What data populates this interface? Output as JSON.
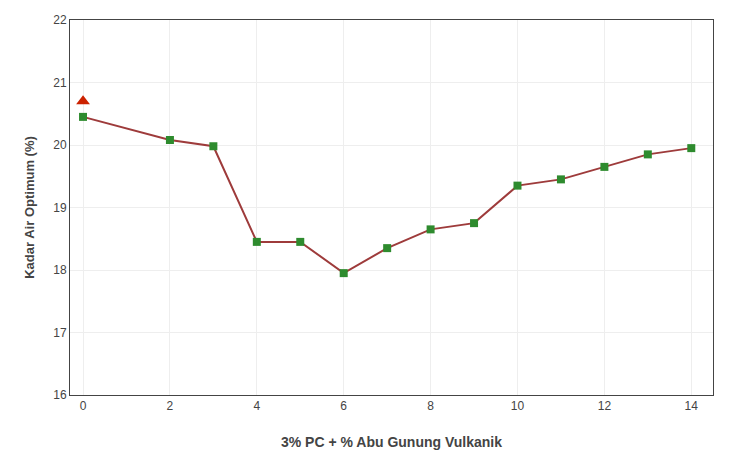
{
  "chart_data": {
    "type": "line",
    "xlabel": "3% PC + % Abu Gunung Vulkanik",
    "ylabel": "Kadar Air Optimum (%)",
    "x": [
      0,
      2,
      3,
      4,
      5,
      6,
      7,
      8,
      9,
      10,
      11,
      12,
      13,
      14
    ],
    "series": [
      {
        "type": "line",
        "color": "#9E3B3B",
        "line_style": "solid",
        "marker": "none",
        "values": [
          20.45,
          20.08,
          19.98,
          18.45,
          18.45,
          17.95,
          18.35,
          18.65,
          18.75,
          19.35,
          19.45,
          19.65,
          19.85,
          19.95
        ]
      },
      {
        "type": "scatter",
        "color": "#2E8B2E",
        "marker": "square",
        "values": [
          20.45,
          20.08,
          19.98,
          18.45,
          18.45,
          17.95,
          18.35,
          18.65,
          18.75,
          19.35,
          19.45,
          19.65,
          19.85,
          19.95
        ]
      },
      {
        "type": "scatter",
        "color": "#CC2200",
        "marker": "triangle",
        "values": [
          20.7,
          null,
          null,
          null,
          null,
          null,
          null,
          null,
          null,
          null,
          null,
          null,
          null,
          null
        ]
      }
    ],
    "xlim": [
      -0.3,
      14.5
    ],
    "xticks": [
      0,
      2,
      4,
      6,
      8,
      10,
      12,
      14
    ],
    "ylim": [
      16,
      22
    ],
    "yticks": [
      16,
      17,
      18,
      19,
      20,
      21,
      22
    ],
    "grid": true
  }
}
